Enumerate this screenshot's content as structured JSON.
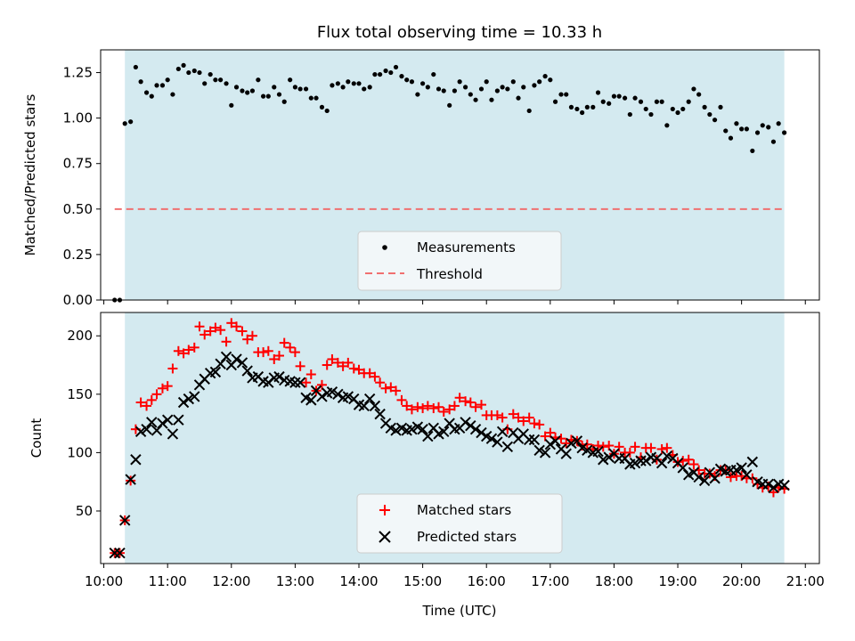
{
  "chart_data": [
    {
      "type": "scatter",
      "title": "Flux total observing time = 10.33 h",
      "xlabel": "",
      "ylabel": "Matched/Predicted stars",
      "xlim": [
        9.95,
        21.22
      ],
      "ylim": [
        0,
        1.375
      ],
      "yticks": [
        "0.00",
        "0.25",
        "0.50",
        "0.75",
        "1.00",
        "1.25"
      ],
      "yticks_values": [
        0,
        0.25,
        0.5,
        0.75,
        1.0,
        1.25
      ],
      "observing_window": [
        10.33,
        20.67
      ],
      "legend_position": "lower-center",
      "series": [
        {
          "name": "Measurements",
          "marker": "dot",
          "color": "#000000",
          "x": [
            10.17,
            10.25,
            10.33,
            10.42,
            10.5,
            10.58,
            10.67,
            10.75,
            10.83,
            10.92,
            11.0,
            11.08,
            11.17,
            11.25,
            11.33,
            11.42,
            11.5,
            11.58,
            11.67,
            11.75,
            11.83,
            11.92,
            12.0,
            12.08,
            12.17,
            12.25,
            12.33,
            12.42,
            12.5,
            12.58,
            12.67,
            12.75,
            12.83,
            12.92,
            13.0,
            13.08,
            13.17,
            13.25,
            13.33,
            13.42,
            13.5,
            13.58,
            13.67,
            13.75,
            13.83,
            13.92,
            14.0,
            14.08,
            14.17,
            14.25,
            14.33,
            14.42,
            14.5,
            14.58,
            14.67,
            14.75,
            14.83,
            14.92,
            15.0,
            15.08,
            15.17,
            15.25,
            15.33,
            15.42,
            15.5,
            15.58,
            15.67,
            15.75,
            15.83,
            15.92,
            16.0,
            16.08,
            16.17,
            16.25,
            16.33,
            16.42,
            16.5,
            16.58,
            16.67,
            16.75,
            16.83,
            16.92,
            17.0,
            17.08,
            17.17,
            17.25,
            17.33,
            17.42,
            17.5,
            17.58,
            17.67,
            17.75,
            17.83,
            17.92,
            18.0,
            18.08,
            18.17,
            18.25,
            18.33,
            18.42,
            18.5,
            18.58,
            18.67,
            18.75,
            18.83,
            18.92,
            19.0,
            19.08,
            19.17,
            19.25,
            19.33,
            19.42,
            19.5,
            19.58,
            19.67,
            19.75,
            19.83,
            19.92,
            20.0,
            20.08,
            20.17,
            20.25,
            20.33,
            20.42,
            20.5,
            20.58,
            20.67
          ],
          "y": [
            0.0,
            0.0,
            0.97,
            0.98,
            1.28,
            1.2,
            1.14,
            1.12,
            1.18,
            1.18,
            1.21,
            1.13,
            1.27,
            1.29,
            1.25,
            1.26,
            1.25,
            1.19,
            1.24,
            1.21,
            1.21,
            1.19,
            1.07,
            1.17,
            1.15,
            1.14,
            1.15,
            1.21,
            1.12,
            1.12,
            1.17,
            1.13,
            1.09,
            1.21,
            1.17,
            1.16,
            1.16,
            1.11,
            1.11,
            1.06,
            1.04,
            1.18,
            1.19,
            1.17,
            1.2,
            1.19,
            1.19,
            1.16,
            1.17,
            1.24,
            1.24,
            1.26,
            1.25,
            1.28,
            1.23,
            1.21,
            1.2,
            1.13,
            1.19,
            1.17,
            1.24,
            1.16,
            1.15,
            1.07,
            1.15,
            1.2,
            1.17,
            1.13,
            1.1,
            1.16,
            1.2,
            1.1,
            1.15,
            1.17,
            1.16,
            1.2,
            1.11,
            1.17,
            1.04,
            1.18,
            1.2,
            1.23,
            1.21,
            1.09,
            1.13,
            1.13,
            1.06,
            1.05,
            1.03,
            1.06,
            1.06,
            1.14,
            1.09,
            1.08,
            1.12,
            1.12,
            1.11,
            1.02,
            1.11,
            1.09,
            1.05,
            1.02,
            1.09,
            1.09,
            0.96,
            1.05,
            1.03,
            1.05,
            1.09,
            1.16,
            1.13,
            1.06,
            1.02,
            0.99,
            1.06,
            0.93,
            0.89,
            0.97,
            0.94,
            0.94,
            0.82,
            0.92,
            0.96,
            0.95,
            0.87,
            0.97,
            0.92
          ]
        },
        {
          "name": "Threshold",
          "marker": "dashed-line",
          "color": "#f07070",
          "x": [
            10.17,
            20.67
          ],
          "y": [
            0.5,
            0.5
          ]
        }
      ]
    },
    {
      "type": "scatter",
      "title": "",
      "xlabel": "Time (UTC)",
      "ylabel": "Count",
      "xlim": [
        9.95,
        21.22
      ],
      "ylim": [
        5,
        220
      ],
      "xticks": [
        "10:00",
        "11:00",
        "12:00",
        "13:00",
        "14:00",
        "15:00",
        "16:00",
        "17:00",
        "18:00",
        "19:00",
        "20:00",
        "21:00"
      ],
      "xticks_values": [
        10,
        11,
        12,
        13,
        14,
        15,
        16,
        17,
        18,
        19,
        20,
        21
      ],
      "yticks": [
        "50",
        "100",
        "150",
        "200"
      ],
      "yticks_values": [
        50,
        100,
        150,
        200
      ],
      "observing_window": [
        10.33,
        20.67
      ],
      "legend_position": "lower-center",
      "x": [
        10.17,
        10.25,
        10.33,
        10.42,
        10.5,
        10.58,
        10.67,
        10.75,
        10.83,
        10.92,
        11.0,
        11.08,
        11.17,
        11.25,
        11.33,
        11.42,
        11.5,
        11.58,
        11.67,
        11.75,
        11.83,
        11.92,
        12.0,
        12.08,
        12.17,
        12.25,
        12.33,
        12.42,
        12.5,
        12.58,
        12.67,
        12.75,
        12.83,
        12.92,
        13.0,
        13.08,
        13.17,
        13.25,
        13.33,
        13.42,
        13.5,
        13.58,
        13.67,
        13.75,
        13.83,
        13.92,
        14.0,
        14.08,
        14.17,
        14.25,
        14.33,
        14.42,
        14.5,
        14.58,
        14.67,
        14.75,
        14.83,
        14.92,
        15.0,
        15.08,
        15.17,
        15.25,
        15.33,
        15.42,
        15.5,
        15.58,
        15.67,
        15.75,
        15.83,
        15.92,
        16.0,
        16.08,
        16.17,
        16.25,
        16.33,
        16.42,
        16.5,
        16.58,
        16.67,
        16.75,
        16.83,
        16.92,
        17.0,
        17.08,
        17.17,
        17.25,
        17.33,
        17.42,
        17.5,
        17.58,
        17.67,
        17.75,
        17.83,
        17.92,
        18.0,
        18.08,
        18.17,
        18.25,
        18.33,
        18.42,
        18.5,
        18.58,
        18.67,
        18.75,
        18.83,
        18.92,
        19.0,
        19.08,
        19.17,
        19.25,
        19.33,
        19.42,
        19.5,
        19.58,
        19.67,
        19.75,
        19.83,
        19.92,
        20.0,
        20.08,
        20.17,
        20.25,
        20.33,
        20.42,
        20.5,
        20.58,
        20.67
      ],
      "series": [
        {
          "name": "Matched stars",
          "marker": "plus",
          "color": "#ff0000",
          "y": [
            14,
            14,
            42,
            76,
            120,
            143,
            140,
            145,
            150,
            155,
            157,
            172,
            187,
            185,
            188,
            190,
            208,
            201,
            204,
            207,
            205,
            195,
            211,
            208,
            204,
            197,
            200,
            186,
            186,
            187,
            180,
            183,
            194,
            190,
            186,
            174,
            160,
            167,
            153,
            158,
            175,
            180,
            177,
            174,
            177,
            172,
            171,
            168,
            168,
            165,
            160,
            155,
            156,
            153,
            145,
            140,
            137,
            139,
            138,
            140,
            138,
            139,
            135,
            137,
            140,
            147,
            144,
            143,
            139,
            141,
            132,
            132,
            132,
            130,
            120,
            133,
            130,
            127,
            130,
            125,
            124,
            114,
            117,
            113,
            112,
            108,
            111,
            110,
            106,
            107,
            103,
            106,
            105,
            106,
            99,
            105,
            100,
            100,
            105,
            96,
            104,
            104,
            94,
            103,
            104,
            98,
            92,
            93,
            94,
            90,
            85,
            82,
            82,
            80,
            85,
            85,
            79,
            80,
            80,
            78,
            78,
            73,
            70,
            71,
            66,
            70,
            69
          ]
        },
        {
          "name": "Predicted stars",
          "marker": "cross",
          "color": "#000000",
          "y": [
            14,
            14,
            42,
            77,
            94,
            118,
            120,
            126,
            119,
            125,
            128,
            116,
            128,
            143,
            146,
            148,
            158,
            163,
            168,
            169,
            176,
            182,
            175,
            180,
            177,
            170,
            164,
            165,
            161,
            160,
            164,
            165,
            162,
            161,
            160,
            160,
            147,
            145,
            153,
            148,
            151,
            152,
            150,
            147,
            148,
            146,
            141,
            140,
            146,
            140,
            133,
            125,
            121,
            119,
            121,
            119,
            120,
            122,
            120,
            114,
            121,
            116,
            118,
            125,
            120,
            121,
            126,
            123,
            120,
            117,
            114,
            112,
            109,
            118,
            105,
            117,
            112,
            116,
            111,
            111,
            102,
            100,
            107,
            110,
            103,
            99,
            108,
            110,
            104,
            102,
            100,
            101,
            94,
            96,
            99,
            95,
            95,
            90,
            91,
            93,
            93,
            96,
            95,
            91,
            97,
            95,
            91,
            87,
            81,
            83,
            79,
            76,
            83,
            78,
            86,
            84,
            85,
            85,
            87,
            81,
            92,
            75,
            73,
            73,
            70,
            73,
            72
          ]
        }
      ]
    }
  ],
  "colors": {
    "observing_window_fill": "#d4eaf0",
    "threshold": "#f07070",
    "matched": "#ff0000",
    "predicted": "#000000"
  }
}
